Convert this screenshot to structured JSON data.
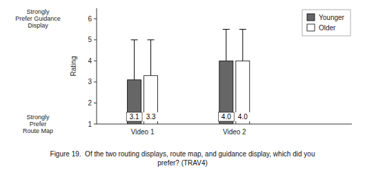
{
  "chart_data": {
    "type": "bar",
    "categories": [
      "Video 1",
      "Video 2"
    ],
    "series": [
      {
        "name": "Younger",
        "color": "#666666",
        "values": [
          3.1,
          4.0
        ],
        "errors": [
          1.9,
          1.5
        ],
        "value_labels": [
          "3.1",
          "4.0"
        ]
      },
      {
        "name": "Older",
        "color": "#ffffff",
        "values": [
          3.3,
          4.0
        ],
        "errors": [
          1.7,
          1.5
        ],
        "value_labels": [
          "3.3",
          "4.0"
        ]
      }
    ],
    "ylabel": "Rating",
    "ylim": [
      1,
      6.5
    ],
    "yticks": [
      1,
      2,
      3,
      4,
      5,
      6
    ],
    "data_labels": true,
    "grid": false,
    "legend": "upper right",
    "annotations": [
      {
        "text": "Strongly\nPrefer Guidance\nDisplay",
        "y": 6
      },
      {
        "text": "Strongly\nPrefer\nRoute Map",
        "y": 1
      }
    ],
    "caption": "Figure 19.  Of the two routing displays, route map, and guidance display, which did you\nprefer? (TRAV4)"
  }
}
